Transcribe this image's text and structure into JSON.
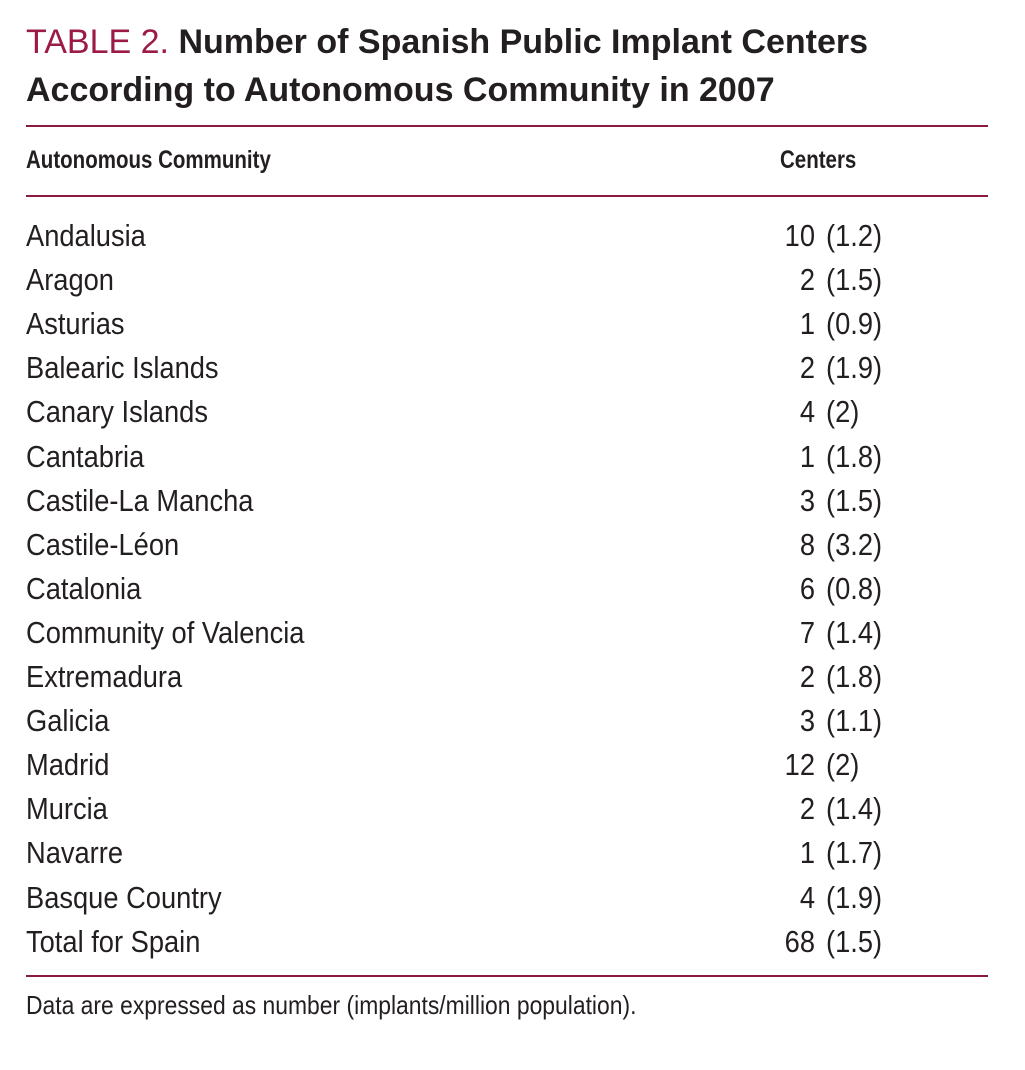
{
  "title": {
    "label": "TABLE 2.",
    "text": "Number of Spanish Public Implant Centers According to Autonomous Community in 2007"
  },
  "colors": {
    "accent": "#9b1b45",
    "text": "#231f20"
  },
  "columns": [
    "Autonomous Community",
    "Centers"
  ],
  "rows": [
    {
      "community": "Andalusia",
      "centers": "10",
      "rate": "(1.2)"
    },
    {
      "community": "Aragon",
      "centers": "2",
      "rate": "(1.5)"
    },
    {
      "community": "Asturias",
      "centers": "1",
      "rate": "(0.9)"
    },
    {
      "community": "Balearic Islands",
      "centers": "2",
      "rate": "(1.9)"
    },
    {
      "community": "Canary Islands",
      "centers": "4",
      "rate": "(2)"
    },
    {
      "community": "Cantabria",
      "centers": "1",
      "rate": "(1.8)"
    },
    {
      "community": "Castile-La Mancha",
      "centers": "3",
      "rate": "(1.5)"
    },
    {
      "community": "Castile-Léon",
      "centers": "8",
      "rate": "(3.2)"
    },
    {
      "community": "Catalonia",
      "centers": "6",
      "rate": "(0.8)"
    },
    {
      "community": "Community of Valencia",
      "centers": "7",
      "rate": "(1.4)"
    },
    {
      "community": "Extremadura",
      "centers": "2",
      "rate": "(1.8)"
    },
    {
      "community": "Galicia",
      "centers": "3",
      "rate": "(1.1)"
    },
    {
      "community": "Madrid",
      "centers": "12",
      "rate": "(2)"
    },
    {
      "community": "Murcia",
      "centers": "2",
      "rate": "(1.4)"
    },
    {
      "community": "Navarre",
      "centers": "1",
      "rate": "(1.7)"
    },
    {
      "community": "Basque Country",
      "centers": "4",
      "rate": "(1.9)"
    },
    {
      "community": "Total for Spain",
      "centers": "68",
      "rate": "(1.5)"
    }
  ],
  "footnote": "Data are expressed as number (implants/million population)."
}
